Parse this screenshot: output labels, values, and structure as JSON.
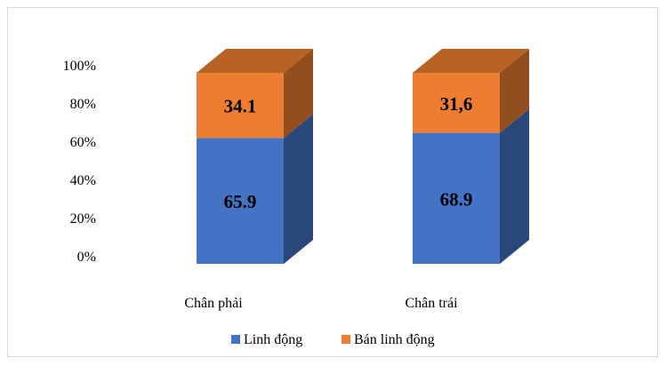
{
  "chart_data": {
    "type": "bar",
    "stacked": true,
    "style": "3d-stacked-column",
    "categories": [
      "Chân phải",
      "Chân trái"
    ],
    "series": [
      {
        "name": "Linh động",
        "values": [
          65.9,
          68.9
        ],
        "labels": [
          "65.9",
          "68.9"
        ],
        "color": "#4472C4"
      },
      {
        "name": "Bán linh động",
        "values": [
          34.1,
          31.6
        ],
        "labels": [
          "34.1",
          "31,6"
        ],
        "color": "#ED7D31"
      }
    ],
    "y_ticks": [
      "0%",
      "20%",
      "40%",
      "60%",
      "80%",
      "100%"
    ],
    "ylim": [
      0,
      100
    ],
    "grid": false,
    "legend_position": "bottom"
  }
}
